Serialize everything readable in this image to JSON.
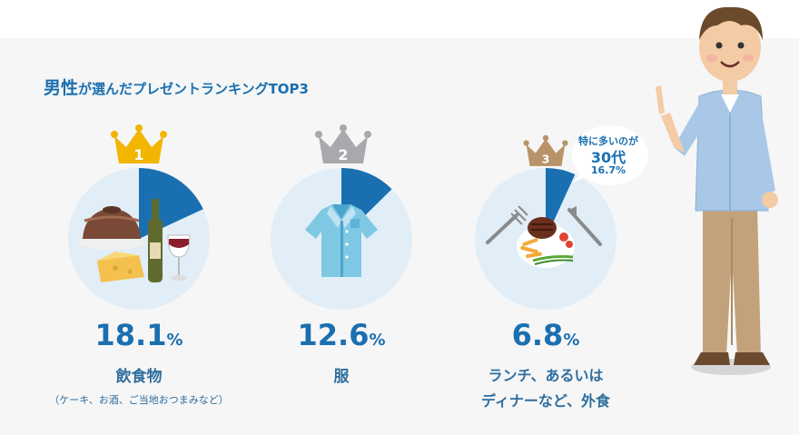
{
  "title": {
    "emphasis": "男性",
    "rest": "が選んだプレゼントランキングTOP3"
  },
  "rankings": [
    {
      "rank": "1",
      "value": 18.1,
      "percent_number": "18.1",
      "percent_sign": "%",
      "label": "飲食物",
      "sublabel": "（ケーキ、お酒、ご当地おつまみなど）",
      "crown_color": "#f2b500"
    },
    {
      "rank": "2",
      "value": 12.6,
      "percent_number": "12.6",
      "percent_sign": "%",
      "label": "服",
      "sublabel": "",
      "crown_color": "#a7a9ac"
    },
    {
      "rank": "3",
      "value": 6.8,
      "percent_number": "6.8",
      "percent_sign": "%",
      "label_line1": "ランチ、あるいは",
      "label_line2": "ディナーなど、外食",
      "crown_color": "#b8936a"
    }
  ],
  "callout": {
    "line1": "特に多いのが",
    "line2": "30代",
    "line3": "16.7%"
  },
  "colors": {
    "accent": "#1a6fb0",
    "circle": "#e1eef7",
    "panel": "#f6f6f6"
  },
  "icons": [
    "crown-icon",
    "cake-wine-cheese-illustration",
    "shirt-illustration",
    "steak-plate-illustration",
    "man-pointing-illustration"
  ]
}
